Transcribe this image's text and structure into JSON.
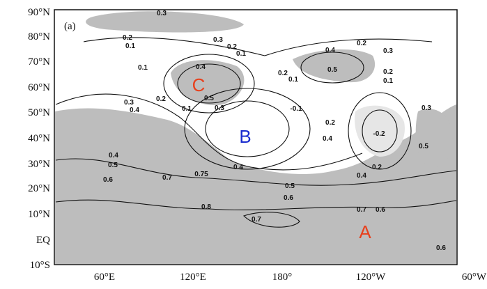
{
  "panel_label": "(a)",
  "lat_labels": [
    "90°N",
    "80°N",
    "70°N",
    "60°N",
    "50°N",
    "40°N",
    "30°N",
    "20°N",
    "10°N",
    "EQ",
    "10°S"
  ],
  "lon_labels": [
    "60°E",
    "120°E",
    "180°",
    "120°W",
    "60°W"
  ],
  "markers": [
    "C",
    "B",
    "A"
  ],
  "contour_labels": [
    "0.3",
    "0.2",
    "0.1",
    "0.3",
    "0.2",
    "0.1",
    "0.1",
    "0.4",
    "0.5",
    "0.2",
    "0.3",
    "0.4",
    "0.5",
    "0.2",
    "0.3",
    "0.4",
    "0.1",
    "0.3",
    "0.2",
    "0.1",
    "-0.1",
    "0.2",
    "0.4",
    "-0.2",
    "0.5",
    "0.3",
    "0.4",
    "0.5",
    "0.6",
    "0.7",
    "0.75",
    "0.4",
    "0.2",
    "0.4",
    "0.5",
    "0.6",
    "0.8",
    "0.7",
    "0.7",
    "0.6",
    "0.6",
    "0.1",
    "0.2"
  ]
}
